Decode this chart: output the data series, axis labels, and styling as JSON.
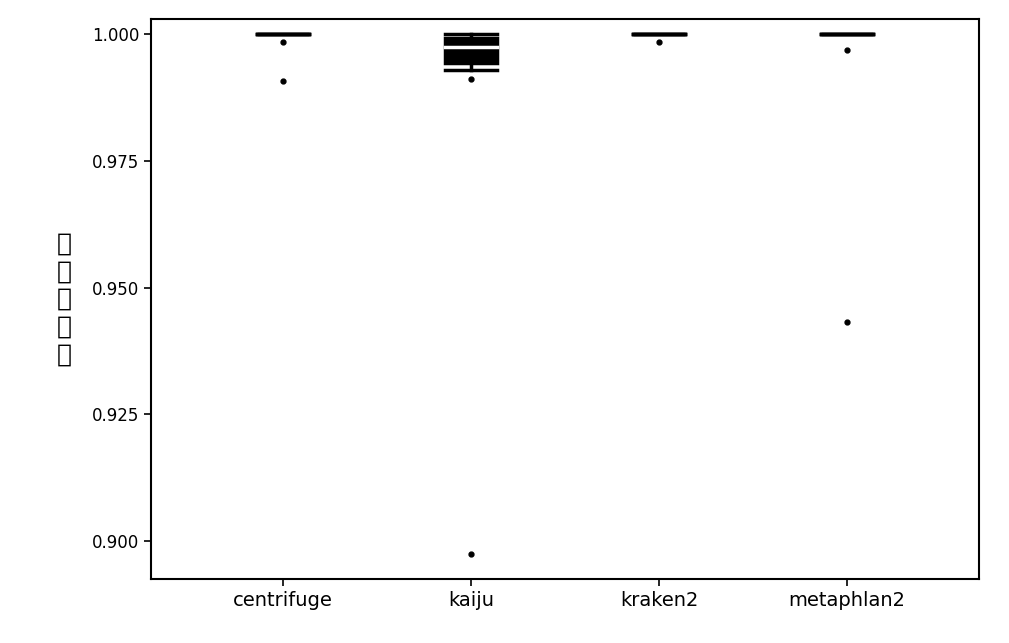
{
  "categories": [
    "centrifuge",
    "kaiju",
    "kraken2",
    "metaphlan2"
  ],
  "ylabel_chars": [
    "阳",
    "性",
    "预",
    "测",
    "值"
  ],
  "ylim": [
    0.8925,
    1.003
  ],
  "yticks": [
    0.9,
    0.925,
    0.95,
    0.975,
    1.0
  ],
  "ytick_labels": [
    "0.900",
    "0.925",
    "0.950",
    "0.975",
    "1.000"
  ],
  "box_color": "#000000",
  "whisker_color": "#000000",
  "median_color": "#ffffff",
  "flier_color": "#000000",
  "background_color": "#ffffff",
  "figsize": [
    10.09,
    6.43
  ],
  "dpi": 100,
  "box_width": 0.28,
  "linewidth": 2.5,
  "boxplot_data": {
    "centrifuge": {
      "q1": 1.0,
      "median": 1.0,
      "q3": 1.0,
      "whisker_low": 1.0,
      "whisker_high": 1.0,
      "fliers": [
        0.9985,
        0.9908
      ]
    },
    "kaiju": {
      "q1": 0.9943,
      "median": 0.9975,
      "q3": 0.9993,
      "whisker_low": 0.993,
      "whisker_high": 1.0,
      "fliers": [
        0.9912,
        0.8973
      ]
    },
    "kraken2": {
      "q1": 1.0,
      "median": 1.0,
      "q3": 1.0,
      "whisker_low": 1.0,
      "whisker_high": 1.0,
      "fliers": [
        0.9985
      ]
    },
    "metaphlan2": {
      "q1": 1.0,
      "median": 1.0,
      "q3": 1.0,
      "whisker_low": 1.0,
      "whisker_high": 1.0,
      "fliers": [
        0.9969,
        0.9432
      ]
    }
  }
}
